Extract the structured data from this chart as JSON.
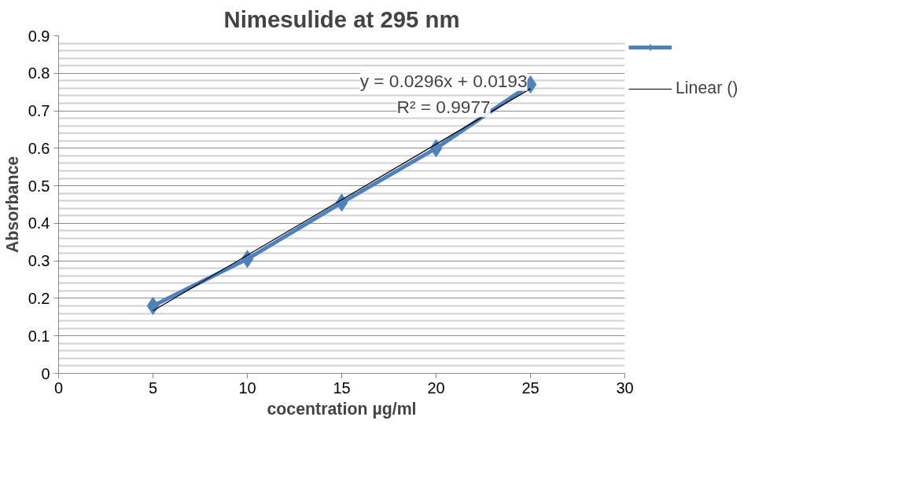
{
  "chart_data": {
    "type": "line",
    "title": "Nimesulide at 295 nm",
    "xlabel": "cocentration µg/ml",
    "ylabel": "Absorbance",
    "x": [
      5,
      10,
      15,
      20,
      25
    ],
    "series": [
      {
        "color": "#4f81bd",
        "values": [
          0.18,
          0.305,
          0.455,
          0.6,
          0.77
        ],
        "marker": "diamond"
      },
      {
        "name": "Linear ()",
        "color": "#000000",
        "x": [
          5,
          25
        ],
        "values": [
          0.167,
          0.759
        ],
        "marker": "none"
      }
    ],
    "annotations": [
      "y = 0.0296x + 0.0193",
      "R² = 0.9977"
    ],
    "xlim": [
      0,
      30
    ],
    "xticks": [
      0,
      5,
      10,
      15,
      20,
      25,
      30
    ],
    "ylim": [
      0,
      0.9
    ],
    "yticks": [
      0,
      0.1,
      0.2,
      0.3,
      0.4,
      0.5,
      0.6,
      0.7,
      0.8,
      0.9
    ],
    "grid": "y",
    "legend": "right"
  }
}
